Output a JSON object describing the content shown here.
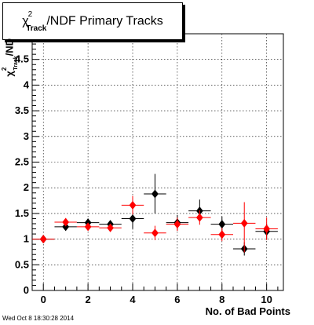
{
  "chart_data": {
    "type": "scatter",
    "title": "/NDF Primary Tracks",
    "title_symbol": "χ",
    "title_sup": "2",
    "title_sub": "Track",
    "ylabel": "/ND",
    "ylabel_symbol": "χ",
    "ylabel_sup": "2",
    "ylabel_sub": "Track",
    "xlabel": "No. of Bad Points",
    "xlim": [
      -0.5,
      10.75
    ],
    "ylim": [
      0,
      5
    ],
    "x_ticks": [
      "0",
      "2",
      "4",
      "6",
      "8",
      "10"
    ],
    "y_ticks": [
      "0",
      "0.5",
      "1",
      "1.5",
      "2",
      "2.5",
      "3",
      "3.5",
      "4",
      "4.5"
    ],
    "grid": true,
    "series": [
      {
        "color": "#000000",
        "marker": "diamond",
        "points": [
          {
            "x": 0,
            "y": 1.0,
            "ylo": 1.0,
            "yhi": 1.0
          },
          {
            "x": 1,
            "y": 1.24,
            "ylo": 1.2,
            "yhi": 1.28
          },
          {
            "x": 2,
            "y": 1.32,
            "ylo": 1.25,
            "yhi": 1.4
          },
          {
            "x": 3,
            "y": 1.29,
            "ylo": 1.22,
            "yhi": 1.36
          },
          {
            "x": 4,
            "y": 1.4,
            "ylo": 1.2,
            "yhi": 1.62
          },
          {
            "x": 5,
            "y": 1.88,
            "ylo": 1.5,
            "yhi": 2.27
          },
          {
            "x": 6,
            "y": 1.32,
            "ylo": 1.17,
            "yhi": 1.47
          },
          {
            "x": 7,
            "y": 1.55,
            "ylo": 1.35,
            "yhi": 1.77
          },
          {
            "x": 8,
            "y": 1.29,
            "ylo": 1.14,
            "yhi": 1.44
          },
          {
            "x": 9,
            "y": 0.81,
            "ylo": 0.68,
            "yhi": 0.94
          },
          {
            "x": 10,
            "y": 1.15,
            "ylo": 1.0,
            "yhi": 1.3
          }
        ]
      },
      {
        "color": "#ff0000",
        "marker": "diamond",
        "points": [
          {
            "x": 0,
            "y": 1.0,
            "ylo": 1.0,
            "yhi": 1.0
          },
          {
            "x": 1,
            "y": 1.33,
            "ylo": 1.29,
            "yhi": 1.37
          },
          {
            "x": 2,
            "y": 1.24,
            "ylo": 1.18,
            "yhi": 1.3
          },
          {
            "x": 3,
            "y": 1.22,
            "ylo": 1.16,
            "yhi": 1.28
          },
          {
            "x": 4,
            "y": 1.66,
            "ylo": 1.48,
            "yhi": 1.84
          },
          {
            "x": 5,
            "y": 1.12,
            "ylo": 0.98,
            "yhi": 1.26
          },
          {
            "x": 6,
            "y": 1.29,
            "ylo": 1.16,
            "yhi": 1.42
          },
          {
            "x": 7,
            "y": 1.42,
            "ylo": 1.28,
            "yhi": 1.56
          },
          {
            "x": 8,
            "y": 1.09,
            "ylo": 0.96,
            "yhi": 1.22
          },
          {
            "x": 9,
            "y": 1.31,
            "ylo": 0.74,
            "yhi": 1.72
          },
          {
            "x": 10,
            "y": 1.2,
            "ylo": 0.98,
            "yhi": 1.42
          }
        ]
      }
    ]
  },
  "footer": "Wed Oct  8 18:30:28 2014"
}
